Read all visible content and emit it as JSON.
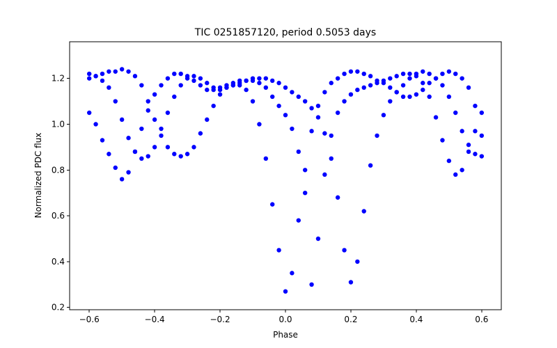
{
  "chart_data": {
    "type": "scatter",
    "title": "TIC 0251857120, period 0.5053 days",
    "xlabel": "Phase",
    "ylabel": "Normalized PDC flux",
    "xlim": [
      -0.66,
      0.66
    ],
    "ylim": [
      0.19,
      1.36
    ],
    "x_ticks": [
      -0.6,
      -0.4,
      -0.2,
      0.0,
      0.2,
      0.4,
      0.6
    ],
    "x_tick_labels": [
      "−0.6",
      "−0.4",
      "−0.2",
      "0.0",
      "0.2",
      "0.4",
      "0.6"
    ],
    "y_ticks": [
      0.2,
      0.4,
      0.6,
      0.8,
      1.0,
      1.2
    ],
    "y_tick_labels": [
      "0.2",
      "0.4",
      "0.6",
      "0.8",
      "1.0",
      "1.2"
    ],
    "grid": false,
    "marker_color": "#0000ff",
    "series": [
      {
        "points": [
          [
            -0.6,
            1.2
          ],
          [
            -0.58,
            1.21
          ],
          [
            -0.56,
            1.22
          ],
          [
            -0.54,
            1.23
          ],
          [
            -0.52,
            1.23
          ],
          [
            -0.5,
            1.24
          ],
          [
            -0.48,
            1.23
          ],
          [
            -0.46,
            1.21
          ],
          [
            -0.44,
            1.17
          ],
          [
            -0.42,
            1.1
          ],
          [
            -0.4,
            1.02
          ],
          [
            -0.38,
            0.95
          ],
          [
            -0.36,
            0.9
          ],
          [
            -0.34,
            0.87
          ],
          [
            -0.32,
            0.86
          ],
          [
            -0.3,
            0.87
          ],
          [
            -0.28,
            0.9
          ],
          [
            -0.26,
            0.96
          ],
          [
            -0.24,
            1.02
          ],
          [
            -0.22,
            1.08
          ],
          [
            -0.2,
            1.13
          ],
          [
            -0.18,
            1.16
          ],
          [
            -0.16,
            1.17
          ],
          [
            -0.14,
            1.17
          ],
          [
            -0.12,
            1.15
          ],
          [
            -0.1,
            1.1
          ],
          [
            -0.08,
            1.0
          ],
          [
            -0.06,
            0.85
          ],
          [
            -0.04,
            0.65
          ],
          [
            -0.02,
            0.45
          ],
          [
            0.0,
            0.27
          ],
          [
            0.02,
            0.35
          ],
          [
            0.04,
            0.58
          ],
          [
            0.06,
            0.8
          ],
          [
            0.08,
            0.97
          ],
          [
            0.1,
            1.08
          ],
          [
            0.12,
            1.14
          ],
          [
            0.14,
            1.18
          ],
          [
            0.16,
            1.2
          ],
          [
            0.18,
            1.22
          ],
          [
            0.2,
            1.23
          ],
          [
            0.22,
            1.23
          ],
          [
            0.24,
            1.22
          ],
          [
            0.26,
            1.21
          ],
          [
            0.28,
            1.19
          ],
          [
            0.3,
            1.18
          ],
          [
            0.32,
            1.16
          ],
          [
            0.34,
            1.14
          ],
          [
            0.36,
            1.12
          ],
          [
            0.38,
            1.12
          ],
          [
            0.4,
            1.13
          ],
          [
            0.42,
            1.15
          ],
          [
            0.44,
            1.18
          ],
          [
            0.46,
            1.2
          ],
          [
            0.48,
            1.22
          ],
          [
            0.5,
            1.23
          ],
          [
            0.52,
            1.22
          ],
          [
            0.54,
            1.2
          ],
          [
            0.56,
            1.16
          ],
          [
            0.58,
            1.08
          ],
          [
            0.6,
            0.95
          ]
        ]
      },
      {
        "points": [
          [
            -0.6,
            1.05
          ],
          [
            -0.58,
            1.0
          ],
          [
            -0.56,
            0.93
          ],
          [
            -0.54,
            0.87
          ],
          [
            -0.52,
            0.81
          ],
          [
            -0.5,
            0.76
          ],
          [
            -0.48,
            0.79
          ],
          [
            -0.46,
            0.88
          ],
          [
            -0.44,
            0.98
          ],
          [
            -0.42,
            1.06
          ],
          [
            -0.4,
            1.13
          ],
          [
            -0.38,
            1.17
          ],
          [
            -0.36,
            1.2
          ],
          [
            -0.34,
            1.22
          ],
          [
            -0.32,
            1.22
          ],
          [
            -0.3,
            1.21
          ],
          [
            -0.28,
            1.19
          ],
          [
            -0.26,
            1.17
          ],
          [
            -0.24,
            1.15
          ],
          [
            -0.22,
            1.15
          ],
          [
            -0.2,
            1.16
          ],
          [
            -0.18,
            1.17
          ],
          [
            -0.16,
            1.18
          ],
          [
            -0.14,
            1.19
          ],
          [
            -0.12,
            1.19
          ],
          [
            -0.1,
            1.19
          ],
          [
            -0.08,
            1.18
          ],
          [
            -0.06,
            1.16
          ],
          [
            -0.04,
            1.12
          ],
          [
            -0.02,
            1.08
          ],
          [
            0.0,
            1.04
          ],
          [
            0.02,
            0.98
          ],
          [
            0.04,
            0.88
          ],
          [
            0.06,
            0.7
          ],
          [
            0.08,
            0.3
          ],
          [
            0.1,
            0.5
          ],
          [
            0.12,
            0.78
          ],
          [
            0.14,
            0.95
          ],
          [
            0.16,
            1.05
          ],
          [
            0.18,
            1.1
          ],
          [
            0.2,
            1.13
          ],
          [
            0.22,
            1.15
          ],
          [
            0.24,
            1.16
          ],
          [
            0.26,
            1.17
          ],
          [
            0.28,
            1.18
          ],
          [
            0.3,
            1.19
          ],
          [
            0.32,
            1.2
          ],
          [
            0.34,
            1.21
          ],
          [
            0.36,
            1.22
          ],
          [
            0.38,
            1.22
          ],
          [
            0.4,
            1.21
          ],
          [
            0.42,
            1.18
          ],
          [
            0.44,
            1.12
          ],
          [
            0.46,
            1.03
          ],
          [
            0.48,
            0.93
          ],
          [
            0.5,
            0.84
          ],
          [
            0.52,
            0.78
          ],
          [
            0.54,
            0.8
          ],
          [
            0.56,
            0.88
          ],
          [
            0.58,
            0.97
          ],
          [
            0.6,
            1.05
          ]
        ]
      },
      {
        "points": [
          [
            -0.6,
            1.22
          ],
          [
            -0.58,
            1.21
          ],
          [
            -0.56,
            1.19
          ],
          [
            -0.54,
            1.16
          ],
          [
            -0.52,
            1.1
          ],
          [
            -0.5,
            1.02
          ],
          [
            -0.48,
            0.94
          ],
          [
            -0.46,
            0.88
          ],
          [
            -0.44,
            0.85
          ],
          [
            -0.42,
            0.86
          ],
          [
            -0.4,
            0.9
          ],
          [
            -0.38,
            0.98
          ],
          [
            -0.36,
            1.05
          ],
          [
            -0.34,
            1.12
          ],
          [
            -0.32,
            1.17
          ],
          [
            -0.3,
            1.2
          ],
          [
            -0.28,
            1.21
          ],
          [
            -0.26,
            1.2
          ],
          [
            -0.24,
            1.18
          ],
          [
            -0.22,
            1.16
          ],
          [
            -0.2,
            1.15
          ],
          [
            -0.18,
            1.16
          ],
          [
            -0.16,
            1.17
          ],
          [
            -0.14,
            1.18
          ],
          [
            -0.12,
            1.19
          ],
          [
            -0.1,
            1.2
          ],
          [
            -0.08,
            1.2
          ],
          [
            -0.06,
            1.2
          ],
          [
            -0.04,
            1.19
          ],
          [
            -0.02,
            1.18
          ],
          [
            0.0,
            1.16
          ],
          [
            0.02,
            1.14
          ],
          [
            0.04,
            1.12
          ],
          [
            0.06,
            1.1
          ],
          [
            0.08,
            1.07
          ],
          [
            0.1,
            1.03
          ],
          [
            0.12,
            0.96
          ],
          [
            0.14,
            0.85
          ],
          [
            0.16,
            0.68
          ],
          [
            0.18,
            0.45
          ],
          [
            0.2,
            0.31
          ],
          [
            0.22,
            0.4
          ],
          [
            0.24,
            0.62
          ],
          [
            0.26,
            0.82
          ],
          [
            0.28,
            0.95
          ],
          [
            0.3,
            1.04
          ],
          [
            0.32,
            1.1
          ],
          [
            0.34,
            1.14
          ],
          [
            0.36,
            1.17
          ],
          [
            0.38,
            1.2
          ],
          [
            0.4,
            1.22
          ],
          [
            0.42,
            1.23
          ],
          [
            0.44,
            1.22
          ],
          [
            0.46,
            1.2
          ],
          [
            0.48,
            1.17
          ],
          [
            0.5,
            1.12
          ],
          [
            0.52,
            1.05
          ],
          [
            0.54,
            0.97
          ],
          [
            0.56,
            0.91
          ],
          [
            0.58,
            0.87
          ],
          [
            0.6,
            0.86
          ]
        ]
      }
    ]
  }
}
